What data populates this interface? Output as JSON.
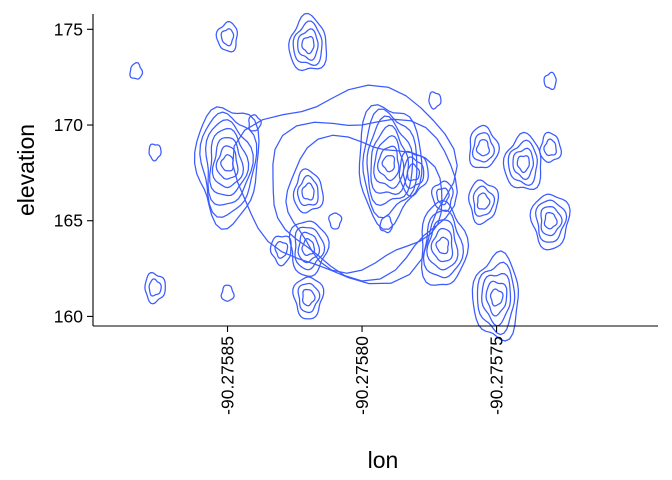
{
  "chart_data": {
    "type": "contour",
    "geom": "density_2d",
    "xlabel": "lon",
    "ylabel": "elevation",
    "xlim": [
      -90.2759,
      -90.27569
    ],
    "ylim": [
      159.5,
      175.8
    ],
    "x_ticks": [
      -90.27585,
      -90.2758,
      -90.27575
    ],
    "x_tick_labels": [
      "-90.27585",
      "-90.27580",
      "-90.27575"
    ],
    "y_ticks": [
      160,
      165,
      170,
      175
    ],
    "y_tick_labels": [
      "160",
      "165",
      "170",
      "175"
    ],
    "x_tick_label_rotation": 90,
    "grid": false,
    "line_color": "#3B5BFF",
    "density_peaks": [
      {
        "lon": -90.275884,
        "elevation": 172.8,
        "levels": 1
      },
      {
        "lon": -90.275877,
        "elevation": 161.5,
        "levels": 2
      },
      {
        "lon": -90.275877,
        "elevation": 168.6,
        "levels": 1
      },
      {
        "lon": -90.27585,
        "elevation": 174.6,
        "levels": 2
      },
      {
        "lon": -90.27585,
        "elevation": 168.0,
        "levels": 7
      },
      {
        "lon": -90.27585,
        "elevation": 161.2,
        "levels": 1
      },
      {
        "lon": -90.27584,
        "elevation": 170.1,
        "levels": 1
      },
      {
        "lon": -90.27583,
        "elevation": 163.5,
        "levels": 2
      },
      {
        "lon": -90.27582,
        "elevation": 174.2,
        "levels": 4
      },
      {
        "lon": -90.27582,
        "elevation": 166.5,
        "levels": 3
      },
      {
        "lon": -90.27582,
        "elevation": 163.6,
        "levels": 4
      },
      {
        "lon": -90.27582,
        "elevation": 161.0,
        "levels": 3
      },
      {
        "lon": -90.27581,
        "elevation": 165.0,
        "levels": 1
      },
      {
        "lon": -90.27579,
        "elevation": 168.0,
        "levels": 7
      },
      {
        "lon": -90.275791,
        "elevation": 164.8,
        "levels": 1
      },
      {
        "lon": -90.275781,
        "elevation": 167.5,
        "levels": 3
      },
      {
        "lon": -90.275773,
        "elevation": 171.3,
        "levels": 1
      },
      {
        "lon": -90.27577,
        "elevation": 166.3,
        "levels": 2
      },
      {
        "lon": -90.27577,
        "elevation": 163.7,
        "levels": 5
      },
      {
        "lon": -90.275755,
        "elevation": 168.8,
        "levels": 3
      },
      {
        "lon": -90.275755,
        "elevation": 166.0,
        "levels": 3
      },
      {
        "lon": -90.27575,
        "elevation": 161.0,
        "levels": 5
      },
      {
        "lon": -90.27574,
        "elevation": 168.0,
        "levels": 4
      },
      {
        "lon": -90.27573,
        "elevation": 172.3,
        "levels": 1
      },
      {
        "lon": -90.27573,
        "elevation": 168.8,
        "levels": 2
      },
      {
        "lon": -90.27573,
        "elevation": 165.0,
        "levels": 4
      }
    ]
  }
}
